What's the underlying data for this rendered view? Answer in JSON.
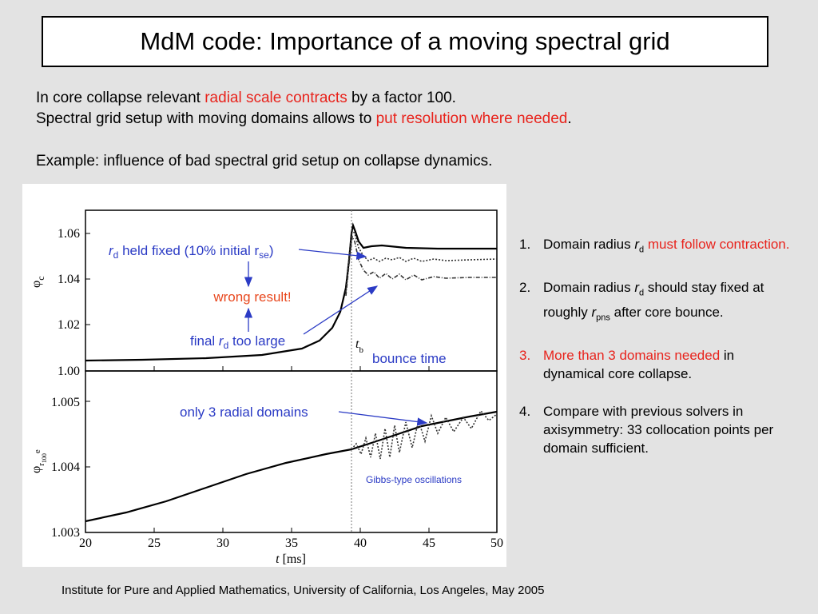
{
  "title": "MdM code: Importance of a moving spectral grid",
  "intro": {
    "line1_a": "In core collapse relevant ",
    "line1_red": "radial scale contracts",
    "line1_b": " by a factor 100.",
    "line2_a": "Spectral grid setup with moving domains allows to ",
    "line2_red": "put resolution where needed",
    "line2_b": ".",
    "line3": "Example: influence of bad spectral grid setup on collapse dynamics."
  },
  "figure": {
    "top_panel": {
      "ylabel_sym": "φ",
      "ylabel_sub": "c",
      "yticks": [
        "1.06",
        "1.04",
        "1.02",
        "1.00"
      ],
      "annotation_fixed_a": "r",
      "annotation_fixed_sub": "d",
      "annotation_fixed_b": " held fixed (10% initial r",
      "annotation_fixed_sub2": "se",
      "annotation_fixed_c": ")",
      "annotation_wrong": "wrong result!",
      "annotation_final_a": "final ",
      "annotation_final_r": "r",
      "annotation_final_sub": "d",
      "annotation_final_b": " too large",
      "tb_label": "t",
      "tb_sub": "b",
      "bounce_label": "bounce time"
    },
    "bottom_panel": {
      "ylabel_sym": "φ",
      "ylabel_sub": "r",
      "ylabel_subsub": "100",
      "ylabel_tail": "e",
      "yticks": [
        "1.005",
        "1.004",
        "1.003"
      ],
      "annotation_domains": "only 3 radial domains",
      "annotation_gibbs": "Gibbs-type oscillations"
    },
    "xticks": [
      "20",
      "25",
      "30",
      "35",
      "40",
      "45",
      "50"
    ],
    "xlabel_t": "t",
    "xlabel_unit": " [ms]"
  },
  "list": [
    {
      "num": "1.",
      "a": "Domain radius ",
      "r": "r",
      "sub": "d",
      "red": " must follow contraction.",
      "b": ""
    },
    {
      "num": "2.",
      "a": "Domain radius ",
      "r": "r",
      "sub": "d",
      "b": " should stay fixed at roughly ",
      "r2": "r",
      "sub2": "pns",
      "c": " after core bounce."
    },
    {
      "num": "3.",
      "red": "More than 3 domains needed",
      "b": " in dynamical core collapse."
    },
    {
      "num": "4.",
      "b": "Compare with previous solvers in axisymmetry: 33 collocation points per domain sufficient."
    }
  ],
  "footer": "Institute for Pure and Applied Mathematics, University of California, Los Angeles, May 2005",
  "colors": {
    "red": "#e8231c",
    "blue": "#2b3bc5",
    "annotation_orange": "#e8461c"
  }
}
